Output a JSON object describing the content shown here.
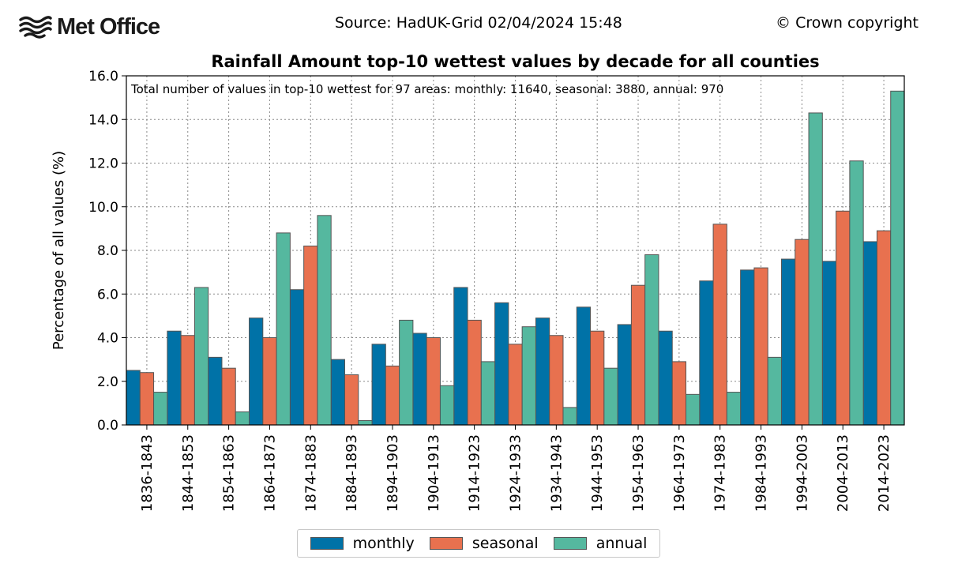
{
  "header": {
    "brand": "Met Office",
    "source": "Source: HadUK-Grid 02/04/2024 15:48",
    "copyright": "© Crown copyright"
  },
  "colors": {
    "monthly": "#0072a7",
    "seasonal": "#e8714f",
    "annual": "#55b89f",
    "bar_edge": "#555555"
  },
  "chart_data": {
    "type": "bar",
    "title": "Rainfall Amount top-10 wettest values by decade for all counties",
    "annotation": "Total number of values in top-10 wettest for 97 areas: monthly: 11640, seasonal: 3880, annual: 970",
    "xlabel": "",
    "ylabel": "Percentage of all values (%)",
    "ylim": [
      0,
      16
    ],
    "yticks": [
      "0.0",
      "2.0",
      "4.0",
      "6.0",
      "8.0",
      "10.0",
      "12.0",
      "14.0",
      "16.0"
    ],
    "grid": true,
    "legend_position": "bottom-center",
    "categories": [
      "1836-1843",
      "1844-1853",
      "1854-1863",
      "1864-1873",
      "1874-1883",
      "1884-1893",
      "1894-1903",
      "1904-1913",
      "1914-1923",
      "1924-1933",
      "1934-1943",
      "1944-1953",
      "1954-1963",
      "1964-1973",
      "1974-1983",
      "1984-1993",
      "1994-2003",
      "2004-2013",
      "2014-2023"
    ],
    "series": [
      {
        "name": "monthly",
        "values": [
          2.5,
          4.3,
          3.1,
          4.9,
          6.2,
          3.0,
          3.7,
          4.2,
          6.3,
          5.6,
          4.9,
          5.4,
          4.6,
          4.3,
          6.6,
          7.1,
          7.6,
          7.5,
          8.4
        ]
      },
      {
        "name": "seasonal",
        "values": [
          2.4,
          4.1,
          2.6,
          4.0,
          8.2,
          2.3,
          2.7,
          4.0,
          4.8,
          3.7,
          4.1,
          4.3,
          6.4,
          2.9,
          9.2,
          7.2,
          8.5,
          9.8,
          8.9
        ]
      },
      {
        "name": "annual",
        "values": [
          1.5,
          6.3,
          0.6,
          8.8,
          9.6,
          0.2,
          4.8,
          1.8,
          2.9,
          4.5,
          0.8,
          2.6,
          7.8,
          1.4,
          1.5,
          3.1,
          14.3,
          12.1,
          15.3
        ]
      }
    ]
  }
}
